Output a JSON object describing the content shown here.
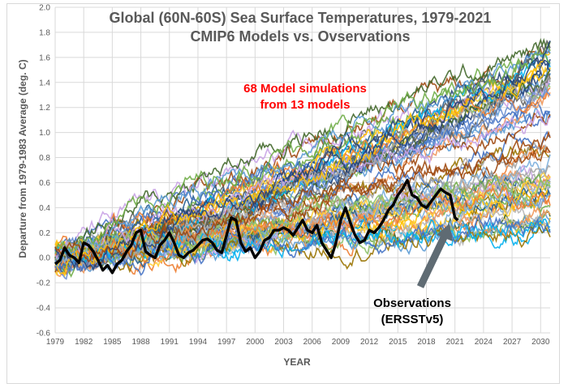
{
  "chart_data": {
    "type": "line",
    "title": "Global (60N-60S) Sea Surface Temperatures, 1979-2021",
    "subtitle": "CMIP6 Models vs. Ovservations",
    "xlabel": "YEAR",
    "ylabel": "Departure from 1979-1983 Average (deg. C)",
    "xlim": [
      1979,
      2031
    ],
    "ylim": [
      -0.6,
      2.0
    ],
    "x_ticks": [
      "1979",
      "1982",
      "1985",
      "1988",
      "1991",
      "1994",
      "1997",
      "2000",
      "2003",
      "2006",
      "2009",
      "2012",
      "2015",
      "2018",
      "2021",
      "2024",
      "2027",
      "2030"
    ],
    "y_ticks": [
      "-0.6",
      "-0.4",
      "-0.2",
      "0.0",
      "0.2",
      "0.4",
      "0.6",
      "0.8",
      "1.0",
      "1.2",
      "1.4",
      "1.6",
      "1.8",
      "2.0"
    ],
    "grid": true,
    "annotations": {
      "models": [
        "68 Model simulations",
        "from 13 models"
      ],
      "observations": [
        "Observations",
        "(ERSSTv5)"
      ]
    },
    "model_ensemble": {
      "count": 68,
      "start_year": 1979,
      "end_year": 2031,
      "start_value": 0.0,
      "end_value_min": 0.2,
      "end_value_max": 1.7,
      "colors": [
        "#4472c4",
        "#ed7d31",
        "#a5a5a5",
        "#ffc000",
        "#5b9bd5",
        "#70ad47",
        "#264478",
        "#9e480e",
        "#636363",
        "#997300",
        "#255e91",
        "#43682b",
        "#698ed0",
        "#f1975a",
        "#b7b7b7",
        "#ffcd33",
        "#7cafdd",
        "#8cc168",
        "#c9a3e6",
        "#00b0f0"
      ]
    },
    "series": [
      {
        "name": "Observations (ERSSTv5)",
        "color": "#000000",
        "x": [
          1979.0,
          1979.5,
          1980.0,
          1980.5,
          1981.0,
          1981.5,
          1982.0,
          1982.5,
          1983.0,
          1983.5,
          1984.0,
          1984.5,
          1985.0,
          1985.5,
          1986.0,
          1986.5,
          1987.0,
          1987.5,
          1988.0,
          1988.5,
          1989.0,
          1989.5,
          1990.0,
          1990.5,
          1991.0,
          1991.5,
          1992.0,
          1992.5,
          1993.0,
          1993.5,
          1994.0,
          1994.5,
          1995.0,
          1995.5,
          1996.0,
          1996.5,
          1997.0,
          1997.5,
          1998.0,
          1998.5,
          1999.0,
          1999.5,
          2000.0,
          2000.5,
          2001.0,
          2001.5,
          2002.0,
          2002.5,
          2003.0,
          2003.5,
          2004.0,
          2004.5,
          2005.0,
          2005.5,
          2006.0,
          2006.5,
          2007.0,
          2007.5,
          2008.0,
          2008.5,
          2009.0,
          2009.5,
          2010.0,
          2010.5,
          2011.0,
          2011.5,
          2012.0,
          2012.5,
          2013.0,
          2013.5,
          2014.0,
          2014.5,
          2015.0,
          2015.5,
          2016.0,
          2016.5,
          2017.0,
          2017.5,
          2018.0,
          2018.5,
          2019.0,
          2019.5,
          2020.0,
          2020.5,
          2021.0,
          2021.3
        ],
        "y": [
          -0.05,
          -0.02,
          0.08,
          0.02,
          0.0,
          -0.04,
          0.12,
          0.1,
          0.05,
          -0.02,
          -0.1,
          -0.06,
          -0.12,
          -0.05,
          -0.02,
          0.05,
          0.1,
          0.2,
          0.22,
          0.05,
          0.02,
          0.0,
          0.1,
          0.14,
          0.2,
          0.12,
          0.02,
          0.0,
          0.04,
          0.06,
          0.1,
          0.14,
          0.15,
          0.12,
          0.06,
          0.04,
          0.18,
          0.32,
          0.3,
          0.12,
          0.05,
          0.08,
          0.0,
          0.05,
          0.14,
          0.16,
          0.22,
          0.22,
          0.24,
          0.22,
          0.18,
          0.24,
          0.3,
          0.22,
          0.2,
          0.26,
          0.12,
          0.06,
          0.0,
          0.12,
          0.3,
          0.4,
          0.28,
          0.18,
          0.12,
          0.14,
          0.22,
          0.2,
          0.24,
          0.3,
          0.38,
          0.42,
          0.5,
          0.55,
          0.62,
          0.5,
          0.48,
          0.42,
          0.4,
          0.45,
          0.5,
          0.55,
          0.52,
          0.5,
          0.32,
          0.3
        ]
      }
    ]
  }
}
